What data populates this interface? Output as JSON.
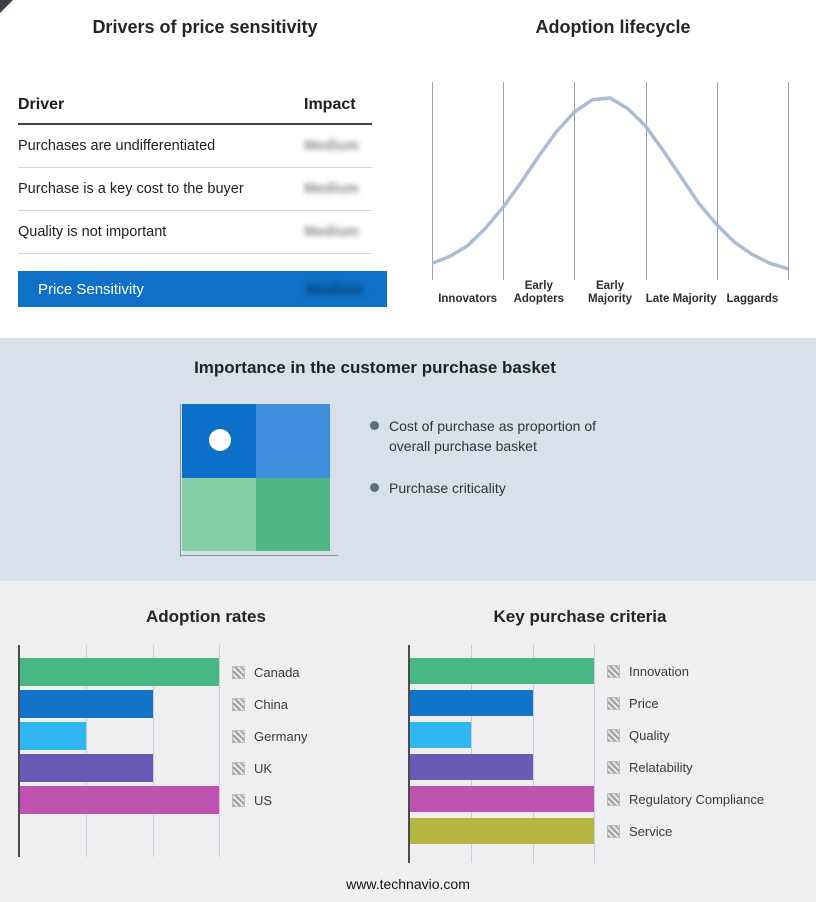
{
  "page": {
    "footer": "www.technavio.com"
  },
  "colors": {
    "highlight_blue": "#0e70c6",
    "band_background": "#d8e1ea",
    "bottom_background": "#efeff1",
    "curve": "#a8bcd4"
  },
  "drivers_panel": {
    "title": "Drivers of price sensitivity",
    "columns": {
      "driver": "Driver",
      "impact": "Impact"
    },
    "rows": [
      {
        "driver": "Purchases are undifferentiated",
        "impact": "Medium"
      },
      {
        "driver": "Purchase is a key cost to the buyer",
        "impact": "Medium"
      },
      {
        "driver": "Quality is not important",
        "impact": "Medium"
      }
    ],
    "summary_row": {
      "label": "Price Sensitivity",
      "impact": "Medium"
    }
  },
  "basket_panel": {
    "title": "Importance in the customer purchase basket",
    "bullets": [
      "Cost of purchase as proportion of overall purchase basket",
      "Purchase criticality"
    ],
    "quadrant_colors": [
      "#0b6ec9",
      "#3f8edd",
      "#86cfa6",
      "#4fb685"
    ]
  },
  "chart_data": [
    {
      "id": "adoption_lifecycle",
      "type": "line",
      "title": "Adoption lifecycle",
      "categories": [
        "Innovators",
        "Early Adopters",
        "Early Majority",
        "Late Majority",
        "Laggards"
      ],
      "curve": "bell",
      "curve_color": "#a8bcd4",
      "grid": true,
      "legend_position": "none",
      "points": [
        [
          0,
          0.06
        ],
        [
          0.05,
          0.1
        ],
        [
          0.1,
          0.16
        ],
        [
          0.15,
          0.26
        ],
        [
          0.2,
          0.38
        ],
        [
          0.25,
          0.52
        ],
        [
          0.3,
          0.67
        ],
        [
          0.35,
          0.81
        ],
        [
          0.4,
          0.92
        ],
        [
          0.45,
          0.99
        ],
        [
          0.5,
          1.0
        ],
        [
          0.55,
          0.94
        ],
        [
          0.6,
          0.84
        ],
        [
          0.65,
          0.7
        ],
        [
          0.7,
          0.55
        ],
        [
          0.75,
          0.4
        ],
        [
          0.8,
          0.28
        ],
        [
          0.85,
          0.18
        ],
        [
          0.9,
          0.11
        ],
        [
          0.95,
          0.06
        ],
        [
          1,
          0.03
        ]
      ]
    },
    {
      "id": "adoption_rates",
      "type": "bar",
      "orientation": "horizontal",
      "title": "Adoption rates",
      "categories": [
        "Canada",
        "China",
        "Germany",
        "UK",
        "US"
      ],
      "values": [
        3,
        2,
        1,
        2,
        3
      ],
      "xlim": [
        0,
        3
      ],
      "grid": true,
      "legend_position": "right",
      "colors": [
        "#47b783",
        "#1173c9",
        "#2fb8f0",
        "#6a5ab6",
        "#c052b2"
      ]
    },
    {
      "id": "key_purchase_criteria",
      "type": "bar",
      "orientation": "horizontal",
      "title": "Key purchase criteria",
      "categories": [
        "Innovation",
        "Price",
        "Quality",
        "Relatability",
        "Regulatory Compliance",
        "Service"
      ],
      "values": [
        3,
        2,
        1,
        2,
        3,
        3
      ],
      "xlim": [
        0,
        3
      ],
      "grid": true,
      "legend_position": "right",
      "colors": [
        "#47b783",
        "#1173c9",
        "#2fb8f0",
        "#6a5ab6",
        "#c052b2",
        "#b6b642"
      ]
    }
  ]
}
